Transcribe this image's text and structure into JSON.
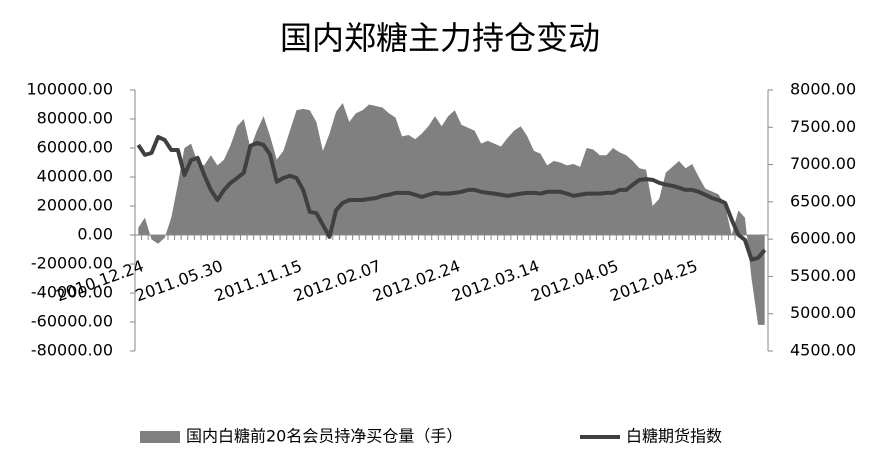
{
  "chart_data": {
    "type": "area-line",
    "title": "国内郑糖主力持仓变动",
    "categories": [
      "2010.12.24",
      null,
      null,
      null,
      null,
      null,
      null,
      null,
      null,
      null,
      null,
      null,
      "2011.05.30",
      null,
      null,
      null,
      null,
      null,
      null,
      null,
      null,
      null,
      null,
      null,
      "2011.11.15",
      null,
      null,
      null,
      null,
      null,
      null,
      null,
      null,
      null,
      null,
      null,
      "2012.02.07",
      null,
      null,
      null,
      null,
      null,
      null,
      null,
      null,
      null,
      null,
      null,
      "2012.02.24",
      null,
      null,
      null,
      null,
      null,
      null,
      null,
      null,
      null,
      null,
      null,
      "2012.03.14",
      null,
      null,
      null,
      null,
      null,
      null,
      null,
      null,
      null,
      null,
      null,
      "2012.04.05",
      null,
      null,
      null,
      null,
      null,
      null,
      null,
      null,
      null,
      null,
      null,
      "2012.04.25",
      null,
      null,
      null,
      null,
      null,
      null,
      null,
      null,
      null,
      null,
      null
    ],
    "series": [
      {
        "name": "国内白糖前20名会员持净买仓量（手）",
        "type": "area",
        "color": "#808080",
        "values": [
          5000,
          12000,
          -3000,
          -6000,
          -2000,
          12000,
          35000,
          60000,
          63000,
          50000,
          48000,
          55000,
          48000,
          52000,
          62000,
          75000,
          80000,
          60000,
          72000,
          82000,
          68000,
          52000,
          58000,
          72000,
          86000,
          87000,
          86000,
          78000,
          58000,
          70000,
          85000,
          91000,
          78000,
          84000,
          86000,
          90000,
          89000,
          88000,
          84000,
          81000,
          68000,
          69000,
          66000,
          70000,
          75000,
          82000,
          75000,
          82000,
          86000,
          76000,
          74000,
          72000,
          63000,
          65000,
          63000,
          61000,
          67000,
          72000,
          75000,
          68000,
          58000,
          56000,
          48000,
          51000,
          50000,
          48000,
          49000,
          47000,
          60000,
          59000,
          55000,
          55000,
          60000,
          57000,
          55000,
          51000,
          46000,
          45000,
          20000,
          25000,
          43000,
          47000,
          51000,
          46000,
          49000,
          40000,
          32000,
          30000,
          28000,
          20000,
          0,
          17000,
          12000,
          -30000,
          -62000,
          -62000
        ]
      },
      {
        "name": "白糖期货指数",
        "type": "line",
        "axis": "y2",
        "color": "#404040",
        "values": [
          7263,
          7130,
          7155,
          7370,
          7330,
          7195,
          7195,
          6860,
          7060,
          7090,
          6860,
          6660,
          6525,
          6660,
          6755,
          6820,
          6890,
          7250,
          7290,
          7263,
          7130,
          6770,
          6820,
          6850,
          6820,
          6660,
          6365,
          6350,
          6190,
          6030,
          6390,
          6485,
          6525,
          6525,
          6525,
          6540,
          6550,
          6580,
          6595,
          6620,
          6620,
          6620,
          6595,
          6565,
          6595,
          6620,
          6610,
          6610,
          6620,
          6635,
          6660,
          6660,
          6635,
          6620,
          6610,
          6595,
          6580,
          6595,
          6610,
          6620,
          6620,
          6610,
          6635,
          6635,
          6635,
          6610,
          6580,
          6595,
          6610,
          6610,
          6610,
          6620,
          6620,
          6660,
          6660,
          6730,
          6795,
          6805,
          6795,
          6755,
          6730,
          6715,
          6690,
          6660,
          6660,
          6635,
          6595,
          6550,
          6525,
          6485,
          6260,
          6060,
          5990,
          5725,
          5750,
          5855
        ]
      }
    ],
    "ylim": [
      -80000,
      100000
    ],
    "yticks": [
      {
        "value": -80000,
        "label": "-80000.00"
      },
      {
        "value": -60000,
        "label": "-60000.00"
      },
      {
        "value": -40000,
        "label": "-40000.00"
      },
      {
        "value": -20000,
        "label": "-20000.00"
      },
      {
        "value": 0,
        "label": "0.00"
      },
      {
        "value": 20000,
        "label": "20000.00"
      },
      {
        "value": 40000,
        "label": "40000.00"
      },
      {
        "value": 60000,
        "label": "60000.00"
      },
      {
        "value": 80000,
        "label": "80000.00"
      },
      {
        "value": 100000,
        "label": "100000.00"
      }
    ],
    "y2lim": [
      4500,
      8000
    ],
    "y2ticks": [
      {
        "value": 4500,
        "label": "4500.00"
      },
      {
        "value": 5000,
        "label": "5000.00"
      },
      {
        "value": 5500,
        "label": "5500.00"
      },
      {
        "value": 6000,
        "label": "6000.00"
      },
      {
        "value": 6500,
        "label": "6500.00"
      },
      {
        "value": 7000,
        "label": "7000.00"
      },
      {
        "value": 7500,
        "label": "7500.00"
      },
      {
        "value": 8000,
        "label": "8000.00"
      }
    ],
    "legend": "bottom",
    "grid": false
  }
}
